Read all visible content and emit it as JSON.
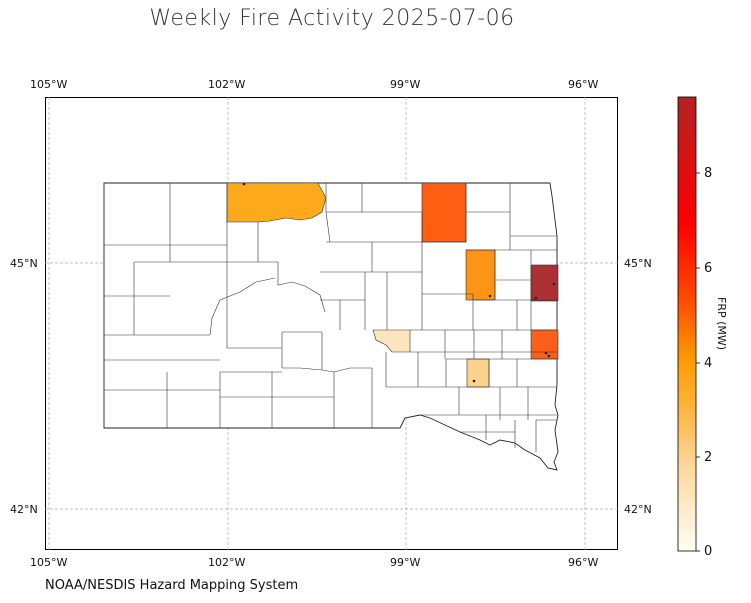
{
  "title": "Weekly Fire Activity 2025-07-06",
  "credit": "NOAA/NESDIS Hazard Mapping System",
  "map": {
    "lon_ticks": [
      "105°W",
      "102°W",
      "99°W",
      "96°W"
    ],
    "lat_ticks": [
      "45°N",
      "42°N"
    ],
    "colors": {
      "boundary": "#333333",
      "grid": "#aaaaaa",
      "empty_county": "#ffffff"
    }
  },
  "colorbar": {
    "label": "FRP (MW)",
    "ticks": [
      "0",
      "2",
      "4",
      "6",
      "8"
    ],
    "stops": [
      "#fffef2",
      "#fdd9a0",
      "#fdb33a",
      "#ff9b00",
      "#ff4d00",
      "#ff0000",
      "#b22222"
    ]
  },
  "counties": [
    {
      "name": "Corson",
      "frp": 3.0,
      "color": "#fda91c"
    },
    {
      "name": "Brown",
      "frp": 4.6,
      "color": "#fd5e12"
    },
    {
      "name": "Spink",
      "frp": 3.3,
      "color": "#fd9415"
    },
    {
      "name": "Brookings",
      "frp": 9.2,
      "color": "#ab3034"
    },
    {
      "name": "Minnehaha",
      "frp": 4.4,
      "color": "#fd5f1a"
    },
    {
      "name": "Buffalo",
      "frp": 1.2,
      "color": "#fde6be"
    },
    {
      "name": "Davison",
      "frp": 1.8,
      "color": "#fcd18e"
    }
  ]
}
